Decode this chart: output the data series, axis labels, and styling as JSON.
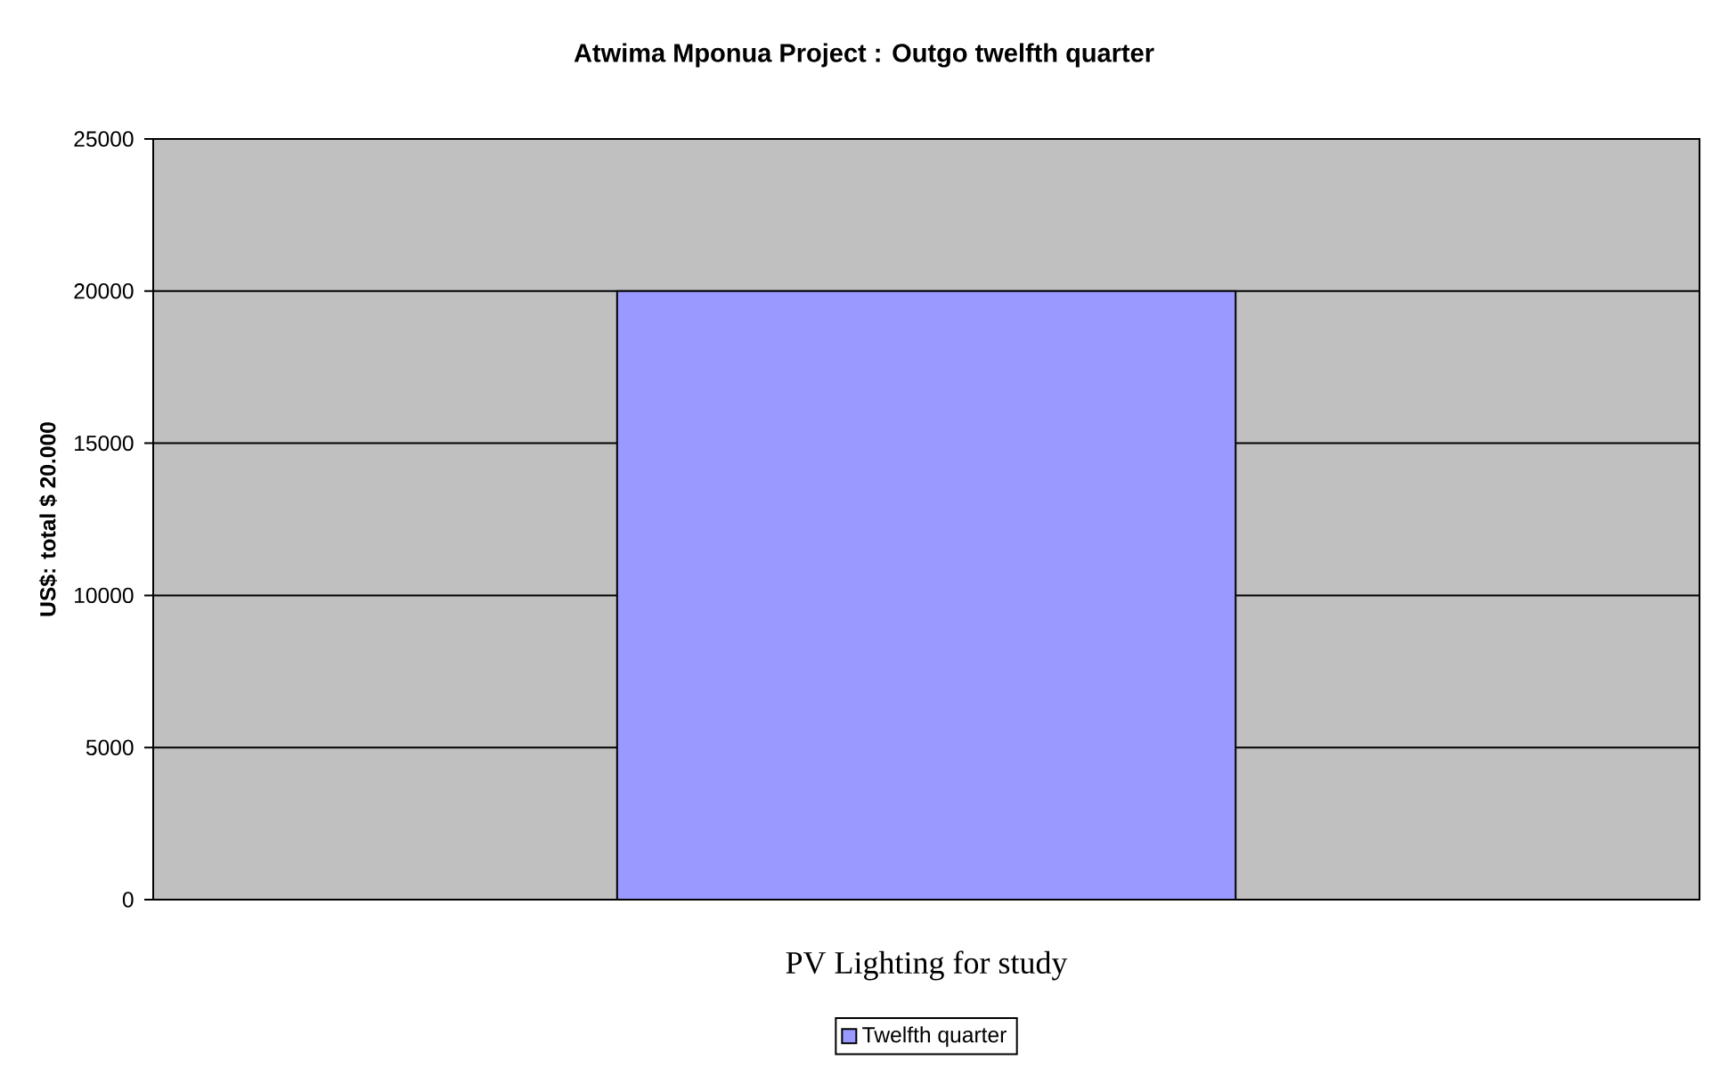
{
  "chart_data": {
    "type": "bar",
    "title": "Atwima Mponua Project : Outgo twelfth quarter",
    "ylabel": "US$: total $ 20.000",
    "categories": [
      "PV Lighting for study"
    ],
    "series": [
      {
        "name": "Twelfth quarter",
        "color": "#9999ff",
        "values": [
          20000
        ]
      }
    ],
    "ylim": [
      0,
      25000
    ],
    "yticks": [
      0,
      5000,
      10000,
      15000,
      20000,
      25000
    ],
    "grid": "y",
    "legend": "bottom"
  }
}
